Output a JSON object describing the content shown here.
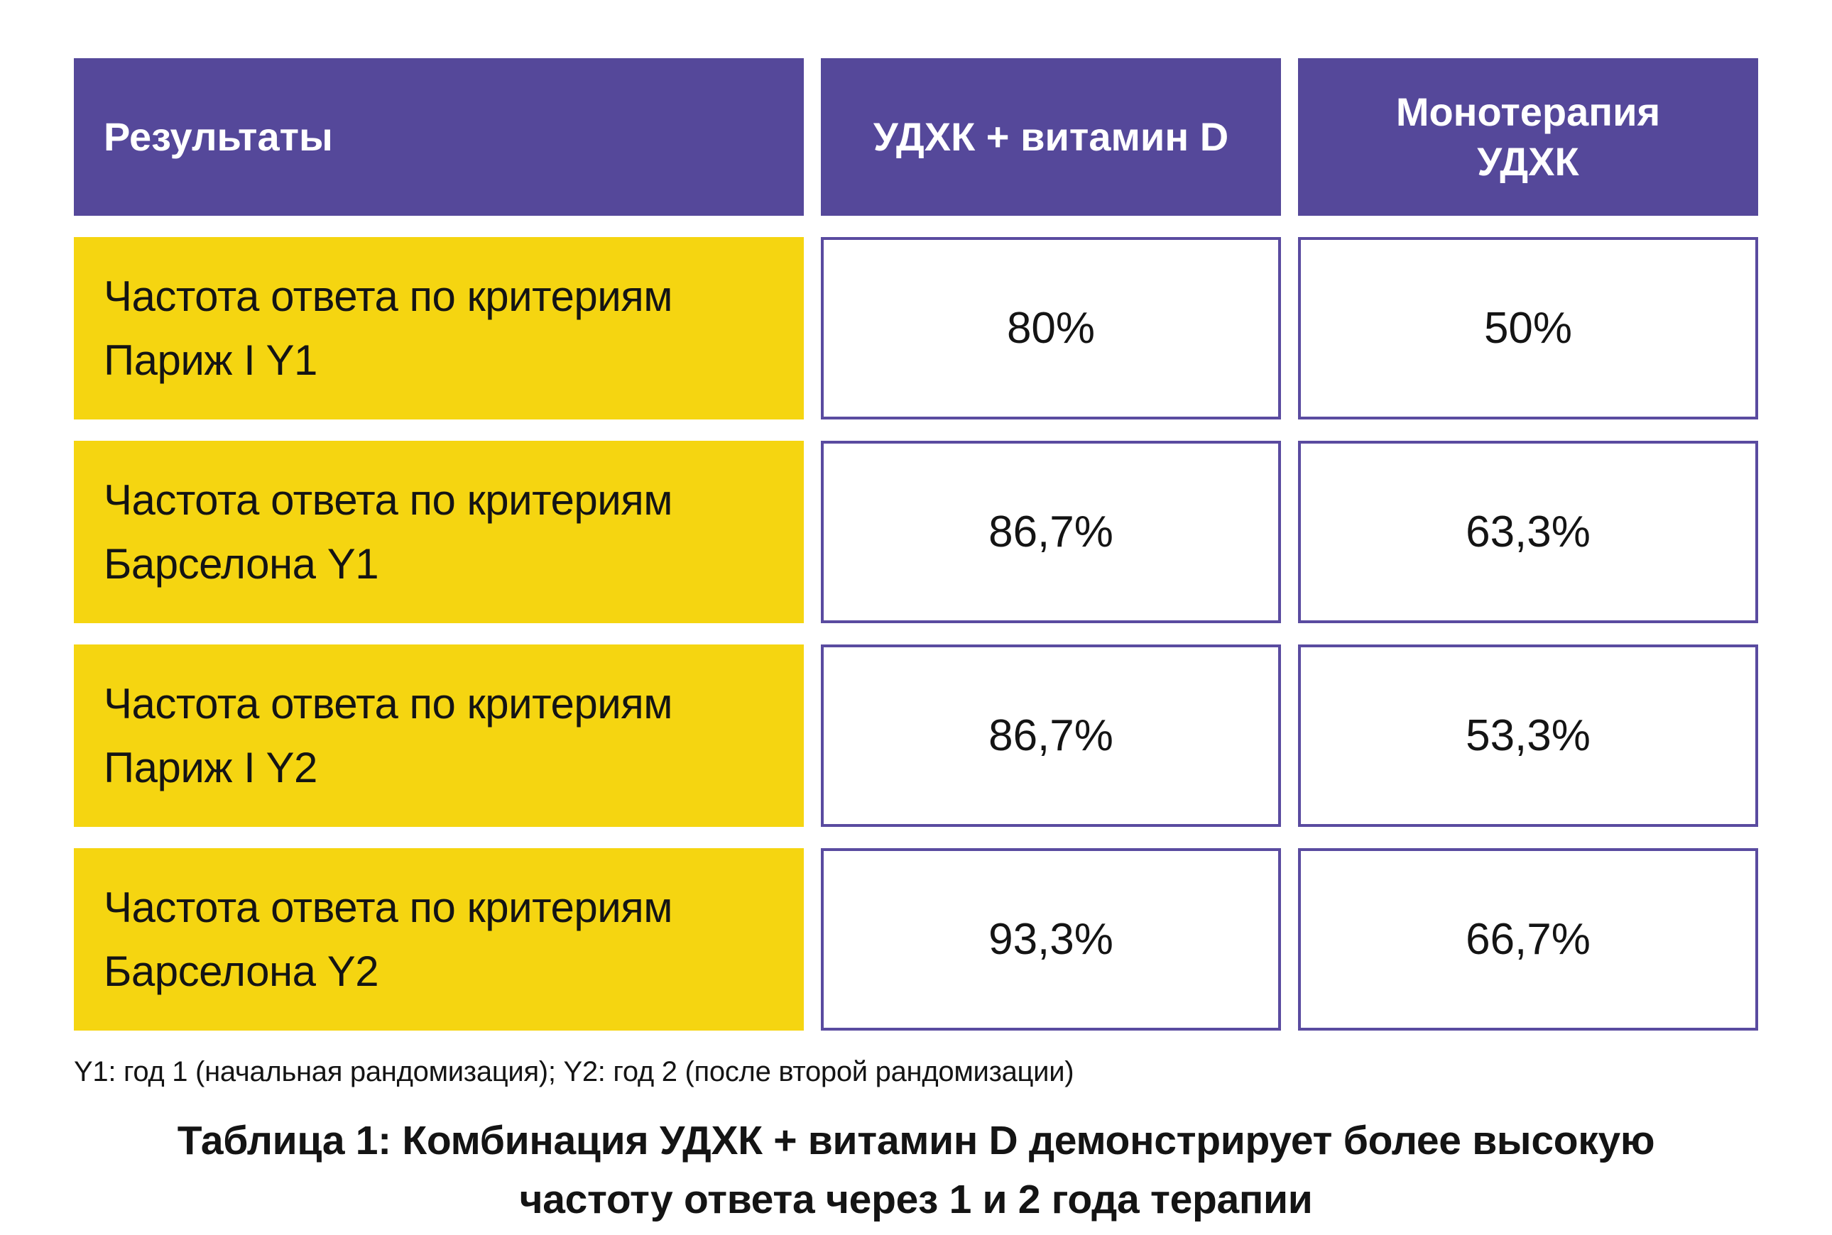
{
  "colors": {
    "header_purple": "#55489A",
    "cell_border_purple": "#5A4BA0",
    "row_yellow": "#F5D511",
    "text_dark": "#141414",
    "header_text": "#FFFFFF",
    "background": "#FFFFFF"
  },
  "table": {
    "headers": [
      "Результаты",
      "УДХК + витамин D",
      "Монотерапия\nУДХК"
    ],
    "rows": [
      {
        "label": "Частота ответа по критериям\nПариж I Y1",
        "combo": "80%",
        "mono": "50%"
      },
      {
        "label": "Частота ответа по критериям\nБарселона Y1",
        "combo": "86,7%",
        "mono": "63,3%"
      },
      {
        "label": "Частота ответа по критериям\nПариж I Y2",
        "combo": "86,7%",
        "mono": "53,3%"
      },
      {
        "label": "Частота ответа по критериям\nБарселона Y2",
        "combo": "93,3%",
        "mono": "66,7%"
      }
    ]
  },
  "footnote": "Y1: год 1 (начальная рандомизация); Y2: год 2 (после второй рандомизации)",
  "caption": "Таблица 1: Комбинация УДХК + витамин D демонстрирует более высокую\nчастоту ответа через 1 и 2 года терапии",
  "chart_data": {
    "type": "table",
    "title": "Таблица 1: Комбинация УДХК + витамин D демонстрирует более высокую частоту ответа через 1 и 2 года терапии",
    "columns": [
      "Результаты",
      "УДХК + витамин D",
      "Монотерапия УДХК"
    ],
    "categories": [
      "Частота ответа по критериям Париж I Y1",
      "Частота ответа по критериям Барселона Y1",
      "Частота ответа по критериям Париж I Y2",
      "Частота ответа по критериям Барселона Y2"
    ],
    "series": [
      {
        "name": "УДХК + витамин D",
        "unit": "%",
        "values": [
          80,
          86.7,
          86.7,
          93.3
        ]
      },
      {
        "name": "Монотерапия УДХК",
        "unit": "%",
        "values": [
          50,
          63.3,
          53.3,
          66.7
        ]
      }
    ],
    "footnote": "Y1: год 1 (начальная рандомизация); Y2: год 2 (после второй рандомизации)"
  }
}
